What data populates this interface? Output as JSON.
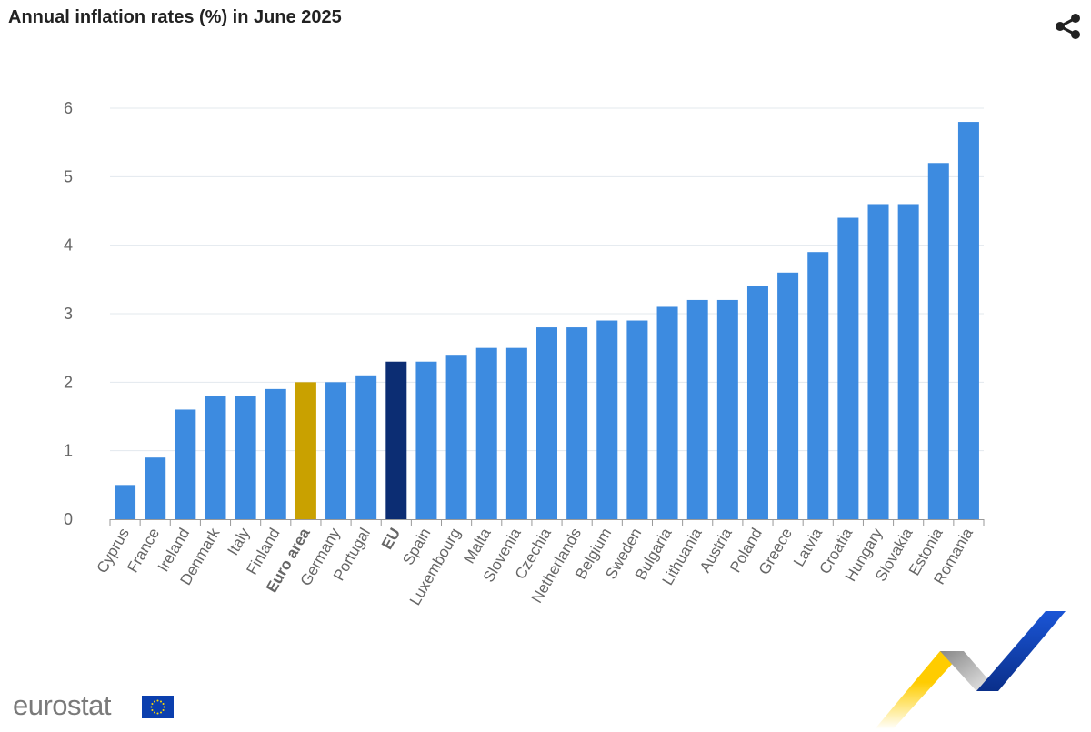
{
  "title": "Annual inflation rates (%) in June 2025",
  "share_icon": "share-icon",
  "logo": {
    "text": "eurostat",
    "flag_icon": "eu-flag-icon"
  },
  "chart_data": {
    "type": "bar",
    "title": "Annual inflation rates (%) in June 2025",
    "xlabel": "",
    "ylabel": "",
    "ylim": [
      0,
      6
    ],
    "yticks": [
      0,
      1,
      2,
      3,
      4,
      5,
      6
    ],
    "grid": true,
    "categories": [
      "Cyprus",
      "France",
      "Ireland",
      "Denmark",
      "Italy",
      "Finland",
      "Euro area",
      "Germany",
      "Portugal",
      "EU",
      "Spain",
      "Luxembourg",
      "Malta",
      "Slovenia",
      "Czechia",
      "Netherlands",
      "Belgium",
      "Sweden",
      "Bulgaria",
      "Lithuania",
      "Austria",
      "Poland",
      "Greece",
      "Latvia",
      "Croatia",
      "Hungary",
      "Slovakia",
      "Estonia",
      "Romania"
    ],
    "values": [
      0.5,
      0.9,
      1.6,
      1.8,
      1.8,
      1.9,
      2.0,
      2.0,
      2.1,
      2.3,
      2.3,
      2.4,
      2.5,
      2.5,
      2.8,
      2.8,
      2.9,
      2.9,
      3.1,
      3.2,
      3.2,
      3.4,
      3.6,
      3.9,
      4.4,
      4.6,
      4.6,
      5.2,
      5.8
    ],
    "highlighted": {
      "Euro area": "#c9a100",
      "EU": "#0c2d73"
    },
    "bold_labels": [
      "Euro area",
      "EU"
    ],
    "colors": {
      "bar": "#3d8be0",
      "grid": "#e3e8ee",
      "axis_text": "#666666"
    }
  }
}
